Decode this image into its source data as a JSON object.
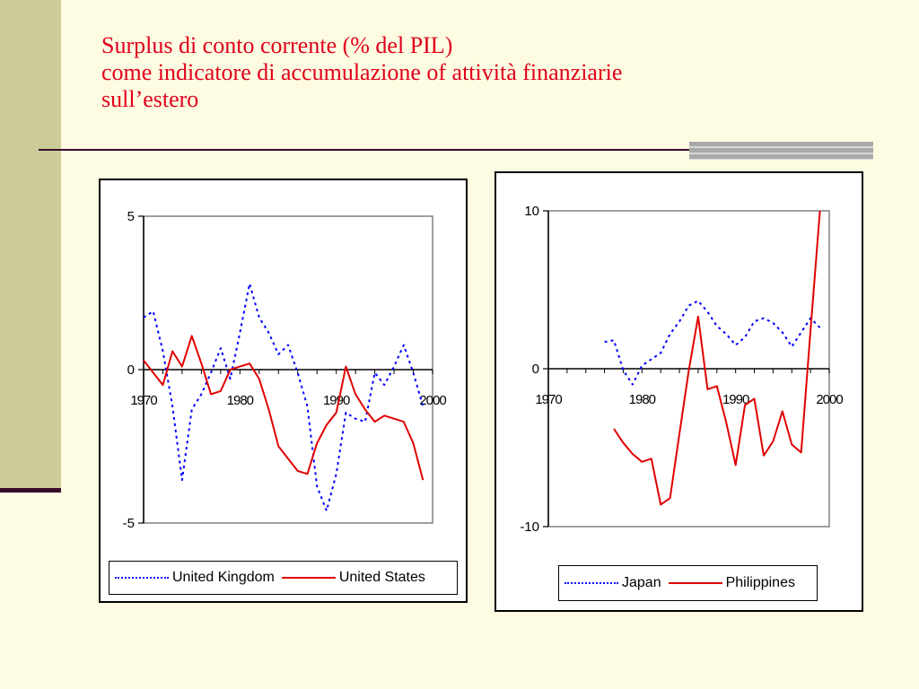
{
  "slide": {
    "title_lines": [
      "Surplus di conto corrente (% del PIL)",
      "come indicatore di accumulazione of attività finanziarie",
      "sull’estero"
    ],
    "title_color": "#E0001B",
    "background": "#FDFCE2",
    "accent_band": "#CCCC99"
  },
  "chart_data": [
    {
      "type": "line",
      "title": "",
      "xlabel": "",
      "ylabel": "",
      "xlim": [
        1970,
        2000
      ],
      "ylim": [
        -5,
        5
      ],
      "x_ticks": [
        "1970",
        "1980",
        "1990",
        "2000"
      ],
      "y_ticks": [
        "5",
        "0",
        "-5"
      ],
      "grid": false,
      "legend": "bottom",
      "series": [
        {
          "name": "United Kingdom",
          "color": "#0000FF",
          "style": "dotted",
          "points": [
            [
              1970,
              1.7
            ],
            [
              1971,
              1.9
            ],
            [
              1972,
              0.6
            ],
            [
              1973,
              -1.2
            ],
            [
              1974,
              -3.6
            ],
            [
              1975,
              -1.3
            ],
            [
              1976,
              -0.8
            ],
            [
              1977,
              -0.1
            ],
            [
              1978,
              0.7
            ],
            [
              1979,
              -0.3
            ],
            [
              1980,
              1.2
            ],
            [
              1981,
              2.8
            ],
            [
              1982,
              1.7
            ],
            [
              1983,
              1.2
            ],
            [
              1984,
              0.5
            ],
            [
              1985,
              0.8
            ],
            [
              1986,
              -0.1
            ],
            [
              1987,
              -1.2
            ],
            [
              1988,
              -3.8
            ],
            [
              1989,
              -4.6
            ],
            [
              1990,
              -3.4
            ],
            [
              1991,
              -1.4
            ],
            [
              1992,
              -1.6
            ],
            [
              1993,
              -1.7
            ],
            [
              1994,
              -0.1
            ],
            [
              1995,
              -0.5
            ],
            [
              1996,
              0.1
            ],
            [
              1997,
              0.8
            ],
            [
              1998,
              -0.1
            ],
            [
              1999,
              -1.2
            ]
          ]
        },
        {
          "name": "United States",
          "color": "#E00000",
          "style": "solid",
          "points": [
            [
              1970,
              0.3
            ],
            [
              1971,
              -0.1
            ],
            [
              1972,
              -0.5
            ],
            [
              1973,
              0.6
            ],
            [
              1974,
              0.1
            ],
            [
              1975,
              1.1
            ],
            [
              1976,
              0.2
            ],
            [
              1977,
              -0.8
            ],
            [
              1978,
              -0.7
            ],
            [
              1979,
              0.0
            ],
            [
              1980,
              0.1
            ],
            [
              1981,
              0.2
            ],
            [
              1982,
              -0.3
            ],
            [
              1983,
              -1.3
            ],
            [
              1984,
              -2.5
            ],
            [
              1985,
              -2.9
            ],
            [
              1986,
              -3.3
            ],
            [
              1987,
              -3.4
            ],
            [
              1988,
              -2.4
            ],
            [
              1989,
              -1.8
            ],
            [
              1990,
              -1.4
            ],
            [
              1991,
              0.1
            ],
            [
              1992,
              -0.8
            ],
            [
              1993,
              -1.3
            ],
            [
              1994,
              -1.7
            ],
            [
              1995,
              -1.5
            ],
            [
              1996,
              -1.6
            ],
            [
              1997,
              -1.7
            ],
            [
              1998,
              -2.4
            ],
            [
              1999,
              -3.6
            ]
          ]
        }
      ]
    },
    {
      "type": "line",
      "title": "",
      "xlabel": "",
      "ylabel": "",
      "xlim": [
        1970,
        2000
      ],
      "ylim": [
        -10,
        10
      ],
      "x_ticks": [
        "1970",
        "1980",
        "1990",
        "2000"
      ],
      "y_ticks": [
        "10",
        "0",
        "-10"
      ],
      "grid": false,
      "legend": "bottom",
      "series": [
        {
          "name": "Japan",
          "color": "#0000FF",
          "style": "dotted",
          "points": [
            [
              1976,
              1.7
            ],
            [
              1977,
              1.8
            ],
            [
              1978,
              -0.1
            ],
            [
              1979,
              -1.0
            ],
            [
              1980,
              0.2
            ],
            [
              1981,
              0.6
            ],
            [
              1982,
              1.0
            ],
            [
              1983,
              2.2
            ],
            [
              1984,
              3.0
            ],
            [
              1985,
              4.0
            ],
            [
              1986,
              4.3
            ],
            [
              1987,
              3.6
            ],
            [
              1988,
              2.7
            ],
            [
              1989,
              2.2
            ],
            [
              1990,
              1.5
            ],
            [
              1991,
              2.0
            ],
            [
              1992,
              3.0
            ],
            [
              1993,
              3.2
            ],
            [
              1994,
              2.9
            ],
            [
              1995,
              2.3
            ],
            [
              1996,
              1.4
            ],
            [
              1997,
              2.3
            ],
            [
              1998,
              3.2
            ],
            [
              1999,
              2.6
            ]
          ]
        },
        {
          "name": "Philippines",
          "color": "#E00000",
          "style": "solid",
          "points": [
            [
              1977,
              -3.8
            ],
            [
              1978,
              -4.7
            ],
            [
              1979,
              -5.4
            ],
            [
              1980,
              -5.9
            ],
            [
              1981,
              -5.7
            ],
            [
              1982,
              -8.6
            ],
            [
              1983,
              -8.2
            ],
            [
              1984,
              -4.1
            ],
            [
              1985,
              -0.1
            ],
            [
              1986,
              3.3
            ],
            [
              1987,
              -1.3
            ],
            [
              1988,
              -1.1
            ],
            [
              1989,
              -3.4
            ],
            [
              1990,
              -6.1
            ],
            [
              1991,
              -2.3
            ],
            [
              1992,
              -1.9
            ],
            [
              1993,
              -5.5
            ],
            [
              1994,
              -4.6
            ],
            [
              1995,
              -2.7
            ],
            [
              1996,
              -4.8
            ],
            [
              1997,
              -5.3
            ],
            [
              1998,
              2.4
            ],
            [
              1999,
              10.0
            ]
          ]
        }
      ]
    }
  ]
}
